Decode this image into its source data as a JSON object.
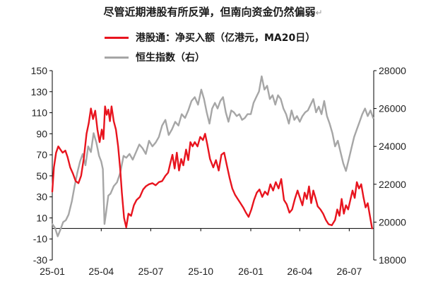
{
  "title": "尽管近期港股有所反弹，但南向资金仍然偏弱",
  "title_mark": "↵",
  "chart_data": {
    "type": "line",
    "title": "尽管近期港股有所反弹，但南向资金仍然偏弱",
    "grid": false,
    "legend_placement": "top",
    "x_ticks": [
      "25-01",
      "25-04",
      "25-07",
      "25-10",
      "26-01",
      "26-04",
      "26-07"
    ],
    "x_range": [
      "2025-01-01",
      "2026-08-15"
    ],
    "y_left": {
      "range": [
        -30,
        150
      ],
      "ticks": [
        -30,
        -10,
        10,
        30,
        50,
        70,
        90,
        110,
        130,
        150
      ]
    },
    "y_right": {
      "range": [
        18000,
        28000
      ],
      "ticks": [
        18000,
        20000,
        22000,
        24000,
        26000,
        28000
      ]
    },
    "series": [
      {
        "name": "港股通：净买入额（亿港元，MA20日）",
        "axis": "left",
        "color": "#e8141e",
        "points": [
          [
            "2025-01-01",
            35
          ],
          [
            "2025-01-04",
            58
          ],
          [
            "2025-01-08",
            72
          ],
          [
            "2025-01-12",
            78
          ],
          [
            "2025-01-16",
            75
          ],
          [
            "2025-01-20",
            72
          ],
          [
            "2025-01-25",
            74
          ],
          [
            "2025-01-29",
            68
          ],
          [
            "2025-02-03",
            58
          ],
          [
            "2025-02-08",
            52
          ],
          [
            "2025-02-13",
            45
          ],
          [
            "2025-02-18",
            43
          ],
          [
            "2025-02-23",
            50
          ],
          [
            "2025-02-28",
            67
          ],
          [
            "2025-03-05",
            90
          ],
          [
            "2025-03-09",
            100
          ],
          [
            "2025-03-13",
            114
          ],
          [
            "2025-03-17",
            104
          ],
          [
            "2025-03-21",
            112
          ],
          [
            "2025-03-25",
            94
          ],
          [
            "2025-03-29",
            82
          ],
          [
            "2025-04-02",
            94
          ],
          [
            "2025-04-05",
            85
          ],
          [
            "2025-04-08",
            116
          ],
          [
            "2025-04-11",
            108
          ],
          [
            "2025-04-14",
            113
          ],
          [
            "2025-04-17",
            102
          ],
          [
            "2025-04-20",
            116
          ],
          [
            "2025-04-24",
            102
          ],
          [
            "2025-04-28",
            94
          ],
          [
            "2025-05-02",
            78
          ],
          [
            "2025-05-06",
            56
          ],
          [
            "2025-05-09",
            34
          ],
          [
            "2025-05-13",
            10
          ],
          [
            "2025-05-17",
            1
          ],
          [
            "2025-05-21",
            14
          ],
          [
            "2025-05-26",
            12
          ],
          [
            "2025-05-31",
            22
          ],
          [
            "2025-06-05",
            27
          ],
          [
            "2025-06-11",
            30
          ],
          [
            "2025-06-17",
            37
          ],
          [
            "2025-06-22",
            40
          ],
          [
            "2025-06-28",
            42
          ],
          [
            "2025-07-04",
            43
          ],
          [
            "2025-07-10",
            41
          ],
          [
            "2025-07-16",
            44
          ],
          [
            "2025-07-22",
            45
          ],
          [
            "2025-07-28",
            50
          ],
          [
            "2025-08-02",
            53
          ],
          [
            "2025-08-06",
            62
          ],
          [
            "2025-08-10",
            70
          ],
          [
            "2025-08-14",
            57
          ],
          [
            "2025-08-18",
            72
          ],
          [
            "2025-08-22",
            55
          ],
          [
            "2025-08-26",
            66
          ],
          [
            "2025-08-30",
            60
          ],
          [
            "2025-09-04",
            75
          ],
          [
            "2025-09-08",
            65
          ],
          [
            "2025-09-12",
            82
          ],
          [
            "2025-09-16",
            78
          ],
          [
            "2025-09-20",
            82
          ],
          [
            "2025-09-25",
            78
          ],
          [
            "2025-09-30",
            87
          ],
          [
            "2025-10-05",
            84
          ],
          [
            "2025-10-09",
            90
          ],
          [
            "2025-10-13",
            80
          ],
          [
            "2025-10-18",
            66
          ],
          [
            "2025-10-24",
            58
          ],
          [
            "2025-10-29",
            65
          ],
          [
            "2025-11-03",
            55
          ],
          [
            "2025-11-08",
            70
          ],
          [
            "2025-11-13",
            72
          ],
          [
            "2025-11-18",
            60
          ],
          [
            "2025-11-23",
            48
          ],
          [
            "2025-11-28",
            38
          ],
          [
            "2025-12-03",
            32
          ],
          [
            "2025-12-08",
            28
          ],
          [
            "2025-12-13",
            24
          ],
          [
            "2025-12-18",
            20
          ],
          [
            "2025-12-23",
            15
          ],
          [
            "2025-12-28",
            11
          ],
          [
            "2026-01-02",
            18
          ],
          [
            "2026-01-07",
            27
          ],
          [
            "2026-01-12",
            34
          ],
          [
            "2026-01-17",
            37
          ],
          [
            "2026-01-22",
            30
          ],
          [
            "2026-01-27",
            35
          ],
          [
            "2026-02-01",
            32
          ],
          [
            "2026-02-06",
            42
          ],
          [
            "2026-02-11",
            36
          ],
          [
            "2026-02-16",
            44
          ],
          [
            "2026-02-21",
            38
          ],
          [
            "2026-02-26",
            47
          ],
          [
            "2026-03-03",
            27
          ],
          [
            "2026-03-08",
            23
          ],
          [
            "2026-03-13",
            15
          ],
          [
            "2026-03-18",
            18
          ],
          [
            "2026-03-23",
            28
          ],
          [
            "2026-03-28",
            36
          ],
          [
            "2026-04-02",
            28
          ],
          [
            "2026-04-06",
            22
          ],
          [
            "2026-04-10",
            34
          ],
          [
            "2026-04-14",
            28
          ],
          [
            "2026-04-18",
            40
          ],
          [
            "2026-04-22",
            24
          ],
          [
            "2026-04-26",
            36
          ],
          [
            "2026-04-30",
            29
          ],
          [
            "2026-05-04",
            21
          ],
          [
            "2026-05-09",
            18
          ],
          [
            "2026-05-14",
            14
          ],
          [
            "2026-05-19",
            8
          ],
          [
            "2026-05-24",
            4
          ],
          [
            "2026-05-30",
            3
          ],
          [
            "2026-06-05",
            8
          ],
          [
            "2026-06-09",
            18
          ],
          [
            "2026-06-13",
            12
          ],
          [
            "2026-06-17",
            28
          ],
          [
            "2026-06-21",
            14
          ],
          [
            "2026-06-25",
            22
          ],
          [
            "2026-06-29",
            18
          ],
          [
            "2026-07-03",
            27
          ],
          [
            "2026-07-07",
            36
          ],
          [
            "2026-07-11",
            29
          ],
          [
            "2026-07-15",
            44
          ],
          [
            "2026-07-19",
            38
          ],
          [
            "2026-07-23",
            42
          ],
          [
            "2026-07-27",
            30
          ],
          [
            "2026-07-31",
            20
          ],
          [
            "2026-08-04",
            24
          ],
          [
            "2026-08-08",
            12
          ],
          [
            "2026-08-12",
            0
          ]
        ]
      },
      {
        "name": "恒生指数（右）",
        "axis": "right",
        "color": "#a6a6a6",
        "points": [
          [
            "2025-01-01",
            19900
          ],
          [
            "2025-01-06",
            19700
          ],
          [
            "2025-01-11",
            19250
          ],
          [
            "2025-01-16",
            19600
          ],
          [
            "2025-01-21",
            20000
          ],
          [
            "2025-01-26",
            20100
          ],
          [
            "2025-01-31",
            20400
          ],
          [
            "2025-02-06",
            21100
          ],
          [
            "2025-02-11",
            21900
          ],
          [
            "2025-02-16",
            22600
          ],
          [
            "2025-02-21",
            23200
          ],
          [
            "2025-02-26",
            23600
          ],
          [
            "2025-03-03",
            23000
          ],
          [
            "2025-03-08",
            24000
          ],
          [
            "2025-03-13",
            23700
          ],
          [
            "2025-03-18",
            24700
          ],
          [
            "2025-03-23",
            24200
          ],
          [
            "2025-03-28",
            23500
          ],
          [
            "2025-04-01",
            23200
          ],
          [
            "2025-04-04",
            22800
          ],
          [
            "2025-04-07",
            19900
          ],
          [
            "2025-04-10",
            20500
          ],
          [
            "2025-04-14",
            21400
          ],
          [
            "2025-04-18",
            21500
          ],
          [
            "2025-04-24",
            21900
          ],
          [
            "2025-04-30",
            22100
          ],
          [
            "2025-05-06",
            22600
          ],
          [
            "2025-05-12",
            23500
          ],
          [
            "2025-05-17",
            23400
          ],
          [
            "2025-05-23",
            23600
          ],
          [
            "2025-05-29",
            23300
          ],
          [
            "2025-06-04",
            23700
          ],
          [
            "2025-06-10",
            24100
          ],
          [
            "2025-06-16",
            23900
          ],
          [
            "2025-06-22",
            23600
          ],
          [
            "2025-06-28",
            24300
          ],
          [
            "2025-07-04",
            24000
          ],
          [
            "2025-07-10",
            24200
          ],
          [
            "2025-07-16",
            24500
          ],
          [
            "2025-07-22",
            25100
          ],
          [
            "2025-07-28",
            25400
          ],
          [
            "2025-08-03",
            24600
          ],
          [
            "2025-08-09",
            24900
          ],
          [
            "2025-08-15",
            25300
          ],
          [
            "2025-08-21",
            25100
          ],
          [
            "2025-08-27",
            25700
          ],
          [
            "2025-09-02",
            25500
          ],
          [
            "2025-09-08",
            25900
          ],
          [
            "2025-09-14",
            26400
          ],
          [
            "2025-09-20",
            26600
          ],
          [
            "2025-09-26",
            26200
          ],
          [
            "2025-10-02",
            27000
          ],
          [
            "2025-10-07",
            26500
          ],
          [
            "2025-10-12",
            25800
          ],
          [
            "2025-10-17",
            25200
          ],
          [
            "2025-10-22",
            26000
          ],
          [
            "2025-10-27",
            26300
          ],
          [
            "2025-11-01",
            26000
          ],
          [
            "2025-11-06",
            26400
          ],
          [
            "2025-11-11",
            26600
          ],
          [
            "2025-11-16",
            25800
          ],
          [
            "2025-11-21",
            25300
          ],
          [
            "2025-11-26",
            25900
          ],
          [
            "2025-12-01",
            25800
          ],
          [
            "2025-12-06",
            25600
          ],
          [
            "2025-12-11",
            25700
          ],
          [
            "2025-12-16",
            25400
          ],
          [
            "2025-12-21",
            25500
          ],
          [
            "2025-12-26",
            25700
          ],
          [
            "2026-01-01",
            25700
          ],
          [
            "2026-01-06",
            26300
          ],
          [
            "2026-01-11",
            26600
          ],
          [
            "2026-01-16",
            26900
          ],
          [
            "2026-01-21",
            27700
          ],
          [
            "2026-01-26",
            27000
          ],
          [
            "2026-01-31",
            27200
          ],
          [
            "2026-02-05",
            26500
          ],
          [
            "2026-02-10",
            26700
          ],
          [
            "2026-02-15",
            26200
          ],
          [
            "2026-02-20",
            26700
          ],
          [
            "2026-02-25",
            26500
          ],
          [
            "2026-03-02",
            26000
          ],
          [
            "2026-03-07",
            25700
          ],
          [
            "2026-03-12",
            25200
          ],
          [
            "2026-03-17",
            25900
          ],
          [
            "2026-03-22",
            25400
          ],
          [
            "2026-03-27",
            25600
          ],
          [
            "2026-04-01",
            25300
          ],
          [
            "2026-04-06",
            25600
          ],
          [
            "2026-04-11",
            25800
          ],
          [
            "2026-04-16",
            25900
          ],
          [
            "2026-04-21",
            26200
          ],
          [
            "2026-04-26",
            26500
          ],
          [
            "2026-05-01",
            25800
          ],
          [
            "2026-05-06",
            26100
          ],
          [
            "2026-05-11",
            25700
          ],
          [
            "2026-05-16",
            26400
          ],
          [
            "2026-05-21",
            25600
          ],
          [
            "2026-05-26",
            25200
          ],
          [
            "2026-05-31",
            24700
          ],
          [
            "2026-06-05",
            24000
          ],
          [
            "2026-06-10",
            24300
          ],
          [
            "2026-06-15",
            23700
          ],
          [
            "2026-06-20",
            23100
          ],
          [
            "2026-06-25",
            22700
          ],
          [
            "2026-06-30",
            23300
          ],
          [
            "2026-07-05",
            23900
          ],
          [
            "2026-07-10",
            24500
          ],
          [
            "2026-07-15",
            24900
          ],
          [
            "2026-07-20",
            25300
          ],
          [
            "2026-07-25",
            25700
          ],
          [
            "2026-07-30",
            26000
          ],
          [
            "2026-08-04",
            25600
          ],
          [
            "2026-08-09",
            25900
          ],
          [
            "2026-08-14",
            25500
          ]
        ]
      }
    ]
  }
}
